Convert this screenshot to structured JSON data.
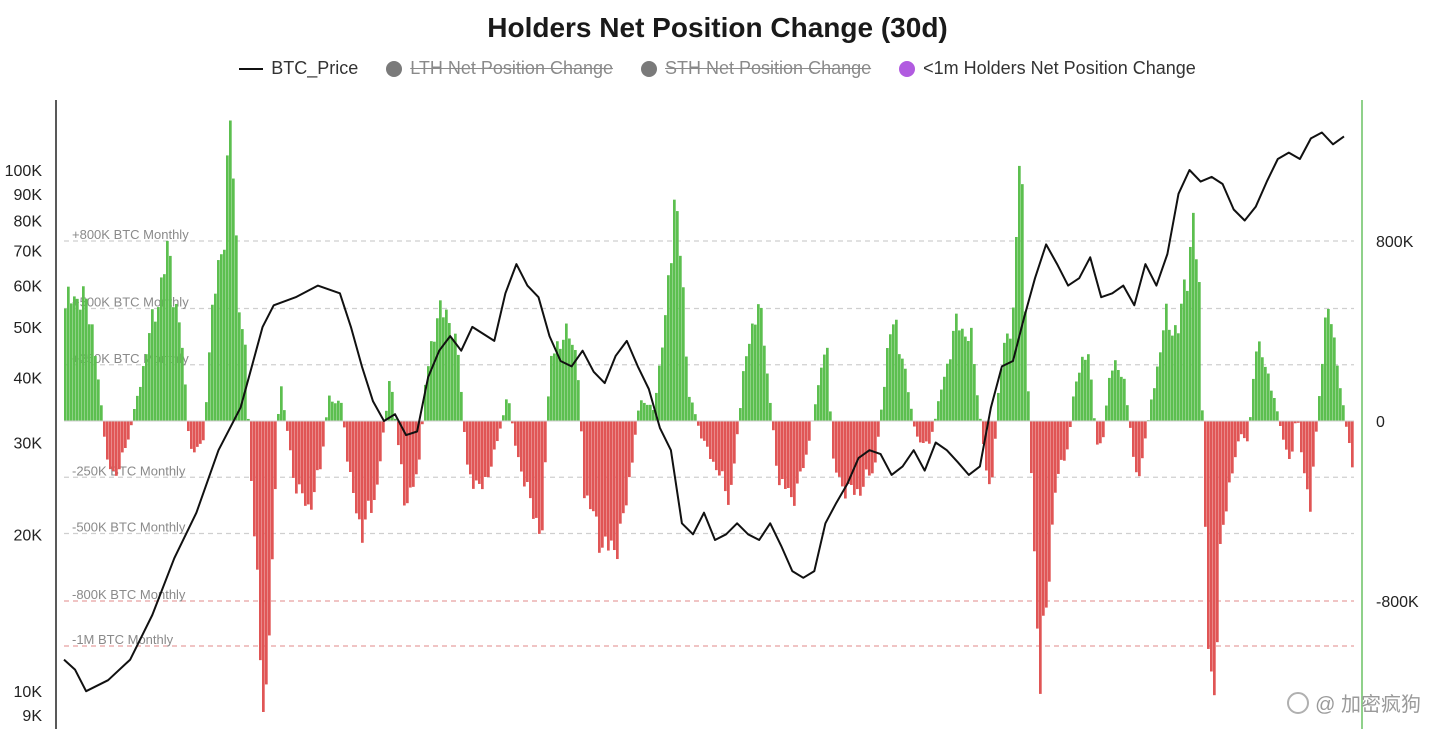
{
  "chart_data": {
    "type": "bar",
    "title": "Holders Net Position Change (30d)",
    "legend": [
      {
        "label": "BTC_Price",
        "marker": "line",
        "color": "#111111",
        "visible": true
      },
      {
        "label": "LTH Net Position Change",
        "marker": "dot",
        "color": "#7a7a7a",
        "visible": false
      },
      {
        "label": "STH Net Position Change",
        "marker": "dot",
        "color": "#7a7a7a",
        "visible": false
      },
      {
        "label": "<1m Holders Net Position Change",
        "marker": "dot",
        "color": "#b15be0",
        "visible": true
      }
    ],
    "left_axis": {
      "scale": "log",
      "tick_labels": [
        "100K",
        "90K",
        "80K",
        "70K",
        "60K",
        "50K",
        "40K",
        "30K",
        "20K",
        "10K",
        "9K"
      ],
      "tick_values": [
        100000,
        90000,
        80000,
        70000,
        60000,
        50000,
        40000,
        30000,
        20000,
        10000,
        9000
      ]
    },
    "right_axis": {
      "tick_labels": [
        "800K",
        "0",
        "-800K"
      ],
      "tick_values": [
        800000,
        0,
        -800000
      ]
    },
    "reference_lines": [
      {
        "label": "+800K BTC Monthly",
        "value": 800000,
        "color": "#cfcfcf"
      },
      {
        "label": "+500K BTC Monthly",
        "value": 500000,
        "color": "#cfcfcf"
      },
      {
        "label": "+250K BTC Monthly",
        "value": 250000,
        "color": "#cfcfcf"
      },
      {
        "label": "-250K BTC Monthly",
        "value": -250000,
        "color": "#cfcfcf"
      },
      {
        "label": "-500K BTC Monthly",
        "value": -500000,
        "color": "#cfcfcf"
      },
      {
        "label": "-800K BTC Monthly",
        "value": -800000,
        "color": "#e8a0a0"
      },
      {
        "label": "-1M BTC Monthly",
        "value": -1000000,
        "color": "#e8a0a0"
      }
    ],
    "colors": {
      "positive": "#5cbf4f",
      "negative": "#e05555",
      "price": "#111111",
      "right_axis": "#8fd18a"
    },
    "net_position_anchors": [
      [
        0,
        500000
      ],
      [
        2,
        580000
      ],
      [
        4,
        420000
      ],
      [
        6,
        -180000
      ],
      [
        7,
        -250000
      ],
      [
        9,
        -100000
      ],
      [
        11,
        200000
      ],
      [
        13,
        500000
      ],
      [
        15,
        750000
      ],
      [
        17,
        300000
      ],
      [
        18,
        -150000
      ],
      [
        20,
        -80000
      ],
      [
        21,
        400000
      ],
      [
        23,
        900000
      ],
      [
        24,
        1300000
      ],
      [
        25,
        600000
      ],
      [
        26,
        300000
      ],
      [
        27,
        -350000
      ],
      [
        28,
        -900000
      ],
      [
        29,
        -1300000
      ],
      [
        30,
        -600000
      ],
      [
        31,
        200000
      ],
      [
        33,
        -250000
      ],
      [
        35,
        -400000
      ],
      [
        37,
        -200000
      ],
      [
        38,
        100000
      ],
      [
        40,
        80000
      ],
      [
        41,
        -250000
      ],
      [
        43,
        -500000
      ],
      [
        45,
        -300000
      ],
      [
        47,
        200000
      ],
      [
        49,
        -350000
      ],
      [
        51,
        -250000
      ],
      [
        52,
        150000
      ],
      [
        53,
        380000
      ],
      [
        55,
        520000
      ],
      [
        57,
        250000
      ],
      [
        58,
        -200000
      ],
      [
        60,
        -320000
      ],
      [
        62,
        -150000
      ],
      [
        64,
        120000
      ],
      [
        65,
        -100000
      ],
      [
        67,
        -350000
      ],
      [
        69,
        -500000
      ],
      [
        70,
        250000
      ],
      [
        72,
        400000
      ],
      [
        74,
        300000
      ],
      [
        75,
        -300000
      ],
      [
        77,
        -500000
      ],
      [
        79,
        -600000
      ],
      [
        81,
        -400000
      ],
      [
        83,
        100000
      ],
      [
        85,
        50000
      ],
      [
        87,
        500000
      ],
      [
        88,
        1050000
      ],
      [
        89,
        700000
      ],
      [
        90,
        150000
      ],
      [
        92,
        -80000
      ],
      [
        94,
        -200000
      ],
      [
        96,
        -350000
      ],
      [
        97,
        -100000
      ],
      [
        98,
        200000
      ],
      [
        100,
        550000
      ],
      [
        101,
        350000
      ],
      [
        103,
        -250000
      ],
      [
        105,
        -350000
      ],
      [
        107,
        -180000
      ],
      [
        109,
        200000
      ],
      [
        110,
        350000
      ],
      [
        111,
        -200000
      ],
      [
        113,
        -320000
      ],
      [
        115,
        -300000
      ],
      [
        117,
        -200000
      ],
      [
        119,
        350000
      ],
      [
        120,
        450000
      ],
      [
        122,
        100000
      ],
      [
        123,
        -80000
      ],
      [
        125,
        -100000
      ],
      [
        127,
        200000
      ],
      [
        129,
        450000
      ],
      [
        131,
        350000
      ],
      [
        133,
        -200000
      ],
      [
        134,
        -280000
      ],
      [
        135,
        200000
      ],
      [
        137,
        500000
      ],
      [
        138,
        1200000
      ],
      [
        139,
        300000
      ],
      [
        140,
        -550000
      ],
      [
        141,
        -1200000
      ],
      [
        142,
        -750000
      ],
      [
        143,
        -300000
      ],
      [
        145,
        -100000
      ],
      [
        146,
        200000
      ],
      [
        148,
        300000
      ],
      [
        149,
        -100000
      ],
      [
        150,
        -80000
      ],
      [
        151,
        250000
      ],
      [
        153,
        200000
      ],
      [
        155,
        -300000
      ],
      [
        157,
        100000
      ],
      [
        159,
        450000
      ],
      [
        161,
        400000
      ],
      [
        163,
        900000
      ],
      [
        164,
        500000
      ],
      [
        165,
        -900000
      ],
      [
        166,
        -1200000
      ],
      [
        167,
        -600000
      ],
      [
        168,
        -300000
      ],
      [
        170,
        -50000
      ],
      [
        171,
        -100000
      ],
      [
        172,
        350000
      ],
      [
        174,
        200000
      ],
      [
        176,
        -80000
      ],
      [
        177,
        -200000
      ],
      [
        178,
        50000
      ],
      [
        179,
        -250000
      ],
      [
        180,
        -350000
      ],
      [
        182,
        400000
      ],
      [
        183,
        500000
      ],
      [
        184,
        200000
      ],
      [
        186,
        -200000
      ]
    ],
    "btc_price_anchors": [
      [
        0,
        11500
      ],
      [
        1,
        11000
      ],
      [
        2,
        10000
      ],
      [
        4,
        10500
      ],
      [
        6,
        11500
      ],
      [
        8,
        14000
      ],
      [
        10,
        18000
      ],
      [
        12,
        22000
      ],
      [
        14,
        29000
      ],
      [
        16,
        35000
      ],
      [
        18,
        50000
      ],
      [
        19,
        55000
      ],
      [
        21,
        57000
      ],
      [
        23,
        60000
      ],
      [
        25,
        58000
      ],
      [
        26,
        50000
      ],
      [
        27,
        42000
      ],
      [
        28,
        36000
      ],
      [
        29,
        33000
      ],
      [
        30,
        34000
      ],
      [
        31,
        31000
      ],
      [
        32,
        31500
      ],
      [
        33,
        40000
      ],
      [
        34,
        45000
      ],
      [
        35,
        48000
      ],
      [
        36,
        45000
      ],
      [
        37,
        50000
      ],
      [
        39,
        47000
      ],
      [
        40,
        58000
      ],
      [
        41,
        66000
      ],
      [
        42,
        60000
      ],
      [
        43,
        57000
      ],
      [
        44,
        48000
      ],
      [
        45,
        43000
      ],
      [
        46,
        42000
      ],
      [
        47,
        45000
      ],
      [
        48,
        41000
      ],
      [
        49,
        39000
      ],
      [
        50,
        44000
      ],
      [
        51,
        47000
      ],
      [
        52,
        42000
      ],
      [
        53,
        38000
      ],
      [
        54,
        32000
      ],
      [
        55,
        29000
      ],
      [
        56,
        21000
      ],
      [
        57,
        20000
      ],
      [
        58,
        22000
      ],
      [
        59,
        19500
      ],
      [
        60,
        20000
      ],
      [
        61,
        21000
      ],
      [
        62,
        20000
      ],
      [
        63,
        19500
      ],
      [
        64,
        21000
      ],
      [
        65,
        19000
      ],
      [
        66,
        17000
      ],
      [
        67,
        16500
      ],
      [
        68,
        17000
      ],
      [
        69,
        21000
      ],
      [
        70,
        23000
      ],
      [
        71,
        25000
      ],
      [
        72,
        28000
      ],
      [
        73,
        29000
      ],
      [
        74,
        28500
      ],
      [
        75,
        26000
      ],
      [
        76,
        27000
      ],
      [
        77,
        29000
      ],
      [
        78,
        26500
      ],
      [
        79,
        30000
      ],
      [
        80,
        29000
      ],
      [
        81,
        27500
      ],
      [
        82,
        26000
      ],
      [
        83,
        27000
      ],
      [
        84,
        35000
      ],
      [
        85,
        42000
      ],
      [
        86,
        43000
      ],
      [
        87,
        52000
      ],
      [
        88,
        62000
      ],
      [
        89,
        72000
      ],
      [
        90,
        66000
      ],
      [
        91,
        60000
      ],
      [
        92,
        62000
      ],
      [
        93,
        68000
      ],
      [
        94,
        57000
      ],
      [
        95,
        58000
      ],
      [
        96,
        60000
      ],
      [
        97,
        55000
      ],
      [
        98,
        66000
      ],
      [
        99,
        60000
      ],
      [
        100,
        69000
      ],
      [
        101,
        90000
      ],
      [
        102,
        100000
      ],
      [
        103,
        95000
      ],
      [
        104,
        97000
      ],
      [
        105,
        94000
      ],
      [
        106,
        84000
      ],
      [
        107,
        80000
      ],
      [
        108,
        85000
      ],
      [
        109,
        95000
      ],
      [
        110,
        105000
      ],
      [
        111,
        108000
      ],
      [
        112,
        105000
      ],
      [
        113,
        115000
      ],
      [
        114,
        118000
      ],
      [
        115,
        112000
      ],
      [
        116,
        116000
      ]
    ]
  },
  "watermark": {
    "text": "@ 加密疯狗"
  }
}
